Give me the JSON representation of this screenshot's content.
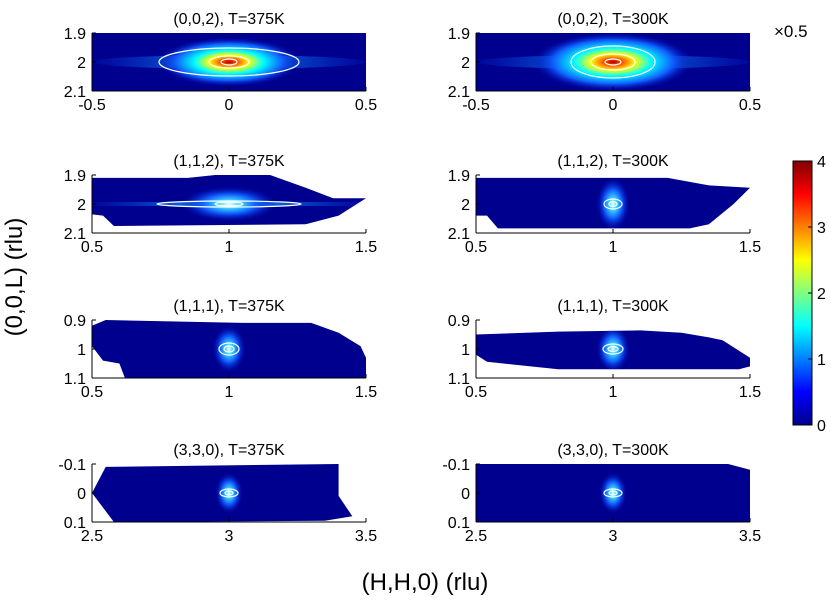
{
  "figure": {
    "xlabel": "(H,H,0) (rlu)",
    "ylabel": "(0,0,L) (rlu)",
    "scale_note": "×0.5"
  },
  "colorbar": {
    "ticks": [
      "0",
      "1",
      "2",
      "3",
      "4"
    ],
    "min": 0,
    "max": 4,
    "colormap": "jet"
  },
  "colors": {
    "background_field": "#00008f",
    "peak_core": "#b40000",
    "contour_line": "#ffffff",
    "axes": "#000000"
  },
  "chart_data": [
    {
      "type": "heatmap",
      "title": "(0,0,2), T=375K",
      "xlim": [
        -0.5,
        0.5
      ],
      "ylim": [
        1.9,
        2.1
      ],
      "xticks": [
        "-0.5",
        "0",
        "0.5"
      ],
      "yticks": [
        "1.9",
        "2",
        "2.1"
      ],
      "peak": {
        "x": 0,
        "y": 2.0,
        "value": 4
      },
      "y_reversed": true
    },
    {
      "type": "heatmap",
      "title": "(0,0,2),   T=300K",
      "xlim": [
        -0.5,
        0.5
      ],
      "ylim": [
        1.9,
        2.1
      ],
      "xticks": [
        "-0.5",
        "0",
        "0.5"
      ],
      "yticks": [
        "1.9",
        "2",
        "2.1"
      ],
      "peak": {
        "x": 0,
        "y": 2.0,
        "value": 4
      },
      "y_reversed": true
    },
    {
      "type": "heatmap",
      "title": "(1,1,2),   T=375K",
      "xlim": [
        0.5,
        1.5
      ],
      "ylim": [
        1.9,
        2.1
      ],
      "xticks": [
        "0.5",
        "1",
        "1.5"
      ],
      "yticks": [
        "1.9",
        "2",
        "2.1"
      ],
      "peak": {
        "x": 1,
        "y": 2.0,
        "value": 2
      },
      "y_reversed": true
    },
    {
      "type": "heatmap",
      "title": "(1,1,2), T=300K",
      "xlim": [
        0.5,
        1.5
      ],
      "ylim": [
        1.9,
        2.1
      ],
      "xticks": [
        "0.5",
        "1",
        "1.5"
      ],
      "yticks": [
        "1.9",
        "2",
        "2.1"
      ],
      "peak": {
        "x": 1,
        "y": 2.0,
        "value": 1.5
      },
      "y_reversed": true
    },
    {
      "type": "heatmap",
      "title": "(1,1,1),   T=375K",
      "xlim": [
        0.5,
        1.5
      ],
      "ylim": [
        0.9,
        1.1
      ],
      "xticks": [
        "0.5",
        "1",
        "1.5"
      ],
      "yticks": [
        "0.9",
        "1",
        "1.1"
      ],
      "peak": {
        "x": 1,
        "y": 1.0,
        "value": 1
      },
      "y_reversed": true
    },
    {
      "type": "heatmap",
      "title": "(1,1,1),   T=300K",
      "xlim": [
        0.5,
        1.5
      ],
      "ylim": [
        0.9,
        1.1
      ],
      "xticks": [
        "0.5",
        "1",
        "1.5"
      ],
      "yticks": [
        "0.9",
        "1",
        "1.1"
      ],
      "peak": {
        "x": 1,
        "y": 1.0,
        "value": 1
      },
      "y_reversed": true
    },
    {
      "type": "heatmap",
      "title": "(3,3,0), T=375K",
      "xlim": [
        2.5,
        3.5
      ],
      "ylim": [
        -0.1,
        0.1
      ],
      "xticks": [
        "2.5",
        "3",
        "3.5"
      ],
      "yticks": [
        "-0.1",
        "0",
        "0.1"
      ],
      "peak": {
        "x": 3,
        "y": 0.0,
        "value": 1.5
      },
      "y_reversed": true
    },
    {
      "type": "heatmap",
      "title": "(3,3,0), T=300K",
      "xlim": [
        2.5,
        3.5
      ],
      "ylim": [
        -0.1,
        0.1
      ],
      "xticks": [
        "2.5",
        "3",
        "3.5"
      ],
      "yticks": [
        "-0.1",
        "0",
        "0.1"
      ],
      "peak": {
        "x": 3,
        "y": 0.0,
        "value": 1.5
      },
      "y_reversed": true
    }
  ]
}
